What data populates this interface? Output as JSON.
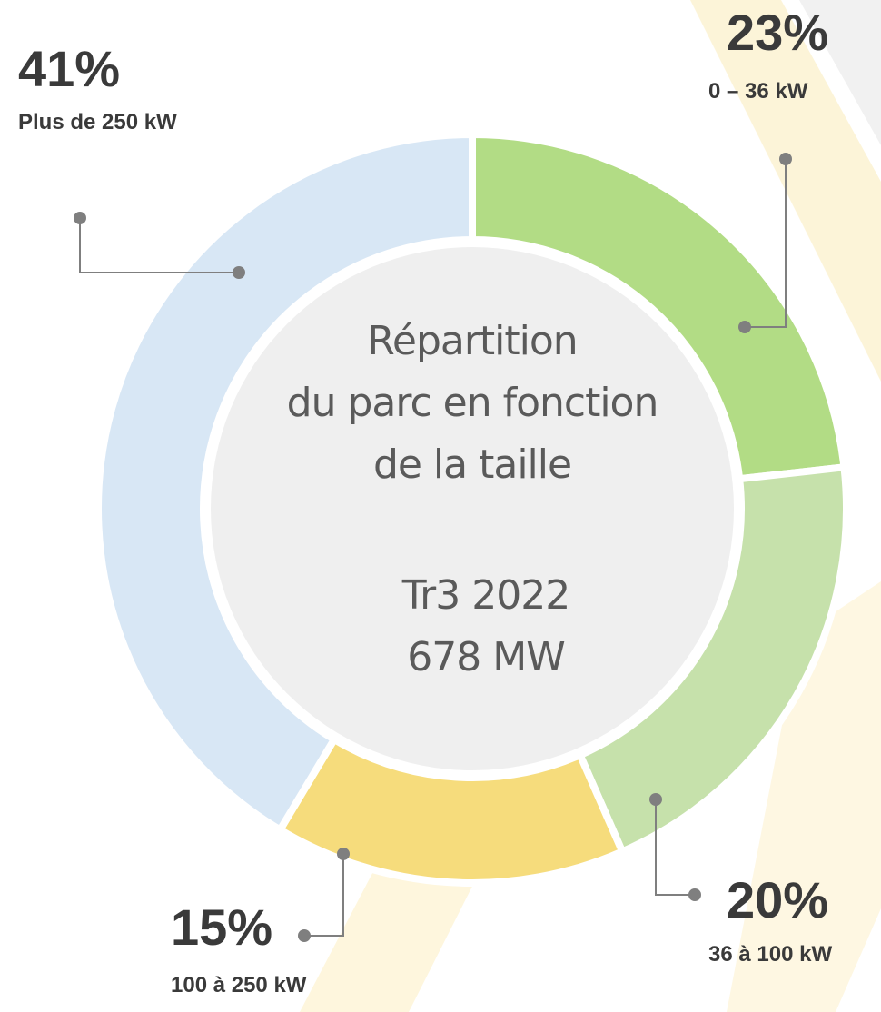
{
  "chart_data": {
    "type": "donut",
    "center_text": [
      "Répartition",
      "du parc en fonction",
      "de la taille"
    ],
    "center_subtext": [
      "Tr3 2022",
      "678 MW"
    ],
    "categories": [
      "0 – 36 kW",
      "36 à 100 kW",
      "100 à 250 kW",
      "Plus de 250 kW"
    ],
    "values": [
      23,
      20,
      15,
      41
    ],
    "value_labels": [
      "23%",
      "20%",
      "15%",
      "41%"
    ],
    "colors": [
      "#b2dc85",
      "#c6e1ab",
      "#f6dc7c",
      "#d8e7f5"
    ]
  }
}
